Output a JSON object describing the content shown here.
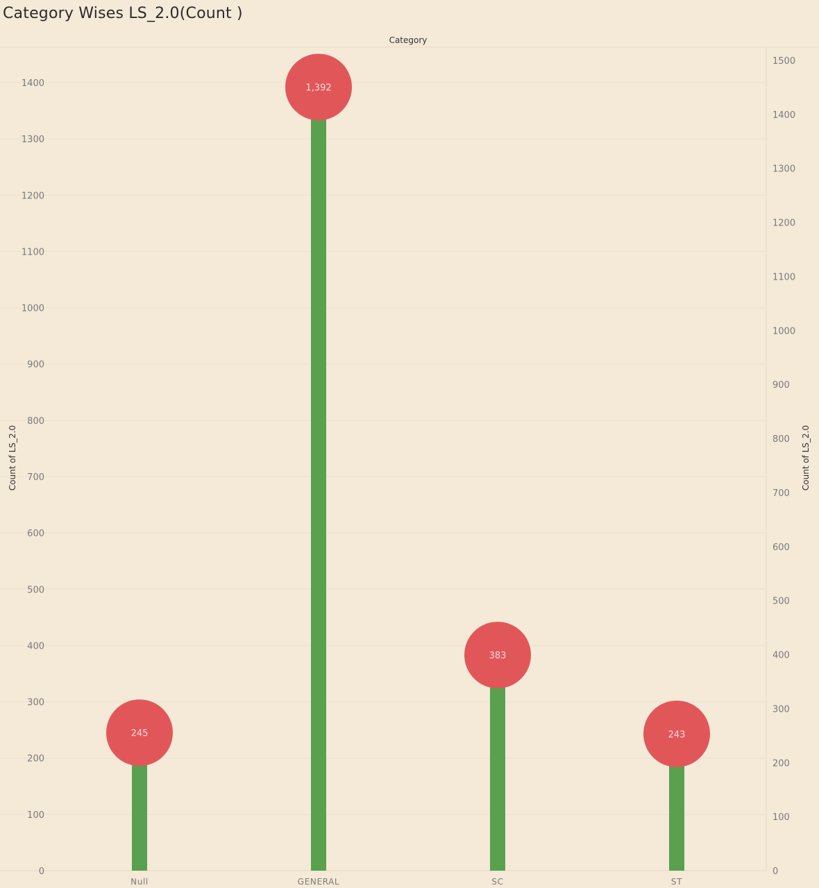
{
  "title": "Category Wises LS_2.0(Count )",
  "colors": {
    "background": "#f5e9d8",
    "stem": "#59a14f",
    "circle": "#e15759",
    "gridline": "#efe4d3"
  },
  "chart_data": {
    "type": "lollipop",
    "title": "Category Wises LS_2.0(Count )",
    "xlabel": "Category",
    "ylabel": "Count of LS_2.0",
    "y2label": "Count of LS_2.0",
    "categories": [
      "Null",
      "GENERAL",
      "SC",
      "ST"
    ],
    "series": [
      {
        "values": [
          245,
          1392,
          383,
          243
        ],
        "labels": [
          "245",
          "1,392",
          "383",
          "243"
        ]
      }
    ],
    "ylim": [
      0,
      1400
    ],
    "y_ticks": [
      0,
      100,
      200,
      300,
      400,
      500,
      600,
      700,
      800,
      900,
      1000,
      1100,
      1200,
      1300,
      1400
    ],
    "y2lim": [
      0,
      1500
    ],
    "y2_ticks": [
      0,
      100,
      200,
      300,
      400,
      500,
      600,
      700,
      800,
      900,
      1000,
      1100,
      1200,
      1300,
      1400,
      1500
    ],
    "grid": true,
    "legend": "none"
  }
}
